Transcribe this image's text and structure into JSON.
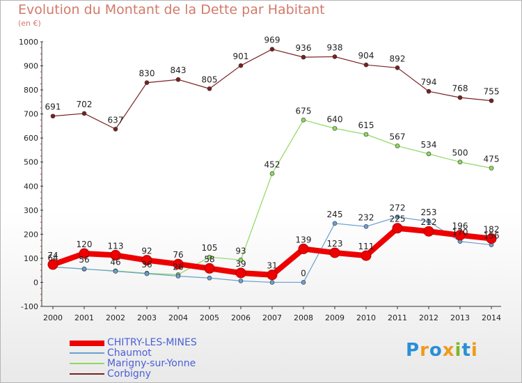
{
  "title": "Evolution du Montant de la Dette par Habitant",
  "subtitle": "(en €)",
  "logo": {
    "text": "Proxiti",
    "colors": [
      "#2a8fd6",
      "#f09a1a",
      "#2a8fd6",
      "#f09a1a",
      "#7ab82a",
      "#2a8fd6",
      "#f09a1a"
    ]
  },
  "chart_data": {
    "type": "line",
    "title": "Evolution du Montant de la Dette par Habitant",
    "subtitle": "(en €)",
    "x": [
      2000,
      2001,
      2002,
      2003,
      2004,
      2005,
      2006,
      2007,
      2008,
      2009,
      2010,
      2011,
      2012,
      2013,
      2014
    ],
    "ylim": [
      -100,
      1000
    ],
    "yticks": [
      -100,
      0,
      100,
      200,
      300,
      400,
      500,
      600,
      700,
      800,
      900,
      1000
    ],
    "grid": false,
    "legend_position": "bottom-left",
    "series": [
      {
        "name": "CHITRY-LES-MINES",
        "color": "#ee0000",
        "width": 8,
        "marker": 7,
        "values": [
          74,
          120,
          113,
          92,
          76,
          58,
          39,
          31,
          139,
          123,
          111,
          225,
          212,
          196,
          182
        ],
        "labels": [
          "74",
          "120",
          "113",
          "92",
          "76",
          "58",
          "39",
          "31",
          "139",
          "123",
          "111",
          "225",
          "212",
          "196",
          "182"
        ]
      },
      {
        "name": "Chaumot",
        "color": "#6a9fd0",
        "width": 1.2,
        "marker": 3,
        "values": [
          64,
          56,
          46,
          36,
          26,
          18,
          6,
          0,
          0,
          245,
          232,
          272,
          253,
          170,
          156
        ],
        "labels": [
          "64",
          "56",
          "46",
          "36",
          "26",
          "",
          "",
          "",
          "0",
          "245",
          "232",
          "272",
          "253",
          "170",
          "156"
        ]
      },
      {
        "name": "Marigny-sur-Yonne",
        "color": "#8fd860",
        "width": 1.2,
        "marker": 3,
        "values": [
          64,
          55,
          48,
          38,
          32,
          105,
          93,
          452,
          675,
          640,
          615,
          567,
          534,
          500,
          475
        ],
        "labels": [
          "",
          "",
          "",
          "",
          "",
          "105",
          "93",
          "452",
          "675",
          "640",
          "615",
          "567",
          "534",
          "500",
          "475"
        ]
      },
      {
        "name": "Corbigny",
        "color": "#7a2020",
        "width": 1.2,
        "marker": 3,
        "values": [
          691,
          702,
          637,
          830,
          843,
          805,
          901,
          969,
          936,
          938,
          904,
          892,
          794,
          768,
          755
        ],
        "labels": [
          "691",
          "702",
          "637",
          "830",
          "843",
          "805",
          "901",
          "969",
          "936",
          "938",
          "904",
          "892",
          "794",
          "768",
          "755"
        ]
      }
    ]
  }
}
